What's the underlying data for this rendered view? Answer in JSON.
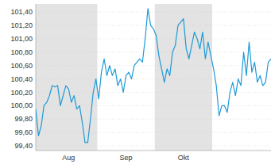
{
  "chart_data": {
    "type": "line",
    "categories": [
      null,
      null,
      null,
      null,
      null,
      null,
      null,
      null,
      null,
      null,
      null,
      null,
      "Aug",
      null,
      null,
      null,
      null,
      null,
      null,
      null,
      null,
      null,
      null,
      null,
      null,
      null,
      null,
      null,
      null,
      null,
      null,
      null,
      null,
      "Sep",
      null,
      null,
      null,
      null,
      null,
      null,
      null,
      null,
      null,
      null,
      null,
      null,
      null,
      null,
      null,
      null,
      null,
      null,
      null,
      null,
      "Okt",
      null,
      null,
      null,
      null,
      null,
      null,
      null,
      null,
      null,
      null,
      null,
      null,
      null,
      null,
      null,
      null,
      null,
      null,
      null,
      null,
      null,
      null,
      null,
      null,
      null,
      null,
      null,
      null,
      null,
      null,
      null,
      null
    ],
    "values": [
      99.95,
      99.55,
      99.7,
      100.0,
      100.05,
      100.15,
      100.3,
      100.28,
      100.3,
      100.0,
      100.15,
      100.3,
      100.25,
      100.05,
      100.15,
      99.95,
      100.0,
      99.75,
      99.45,
      99.45,
      99.8,
      100.2,
      100.4,
      100.1,
      100.5,
      100.7,
      100.45,
      100.6,
      100.45,
      100.55,
      100.3,
      100.4,
      100.2,
      100.45,
      100.5,
      100.4,
      100.6,
      100.65,
      100.7,
      100.65,
      101.0,
      101.45,
      101.2,
      101.15,
      101.05,
      100.75,
      100.55,
      100.35,
      100.55,
      100.45,
      100.8,
      100.9,
      101.2,
      101.25,
      101.3,
      100.85,
      100.7,
      100.9,
      101.1,
      101.0,
      100.85,
      101.1,
      100.7,
      100.95,
      100.75,
      100.55,
      100.3,
      99.85,
      100.0,
      100.0,
      99.9,
      100.2,
      100.35,
      100.15,
      100.4,
      100.3,
      100.8,
      100.45,
      100.95,
      100.5,
      100.65,
      100.35,
      100.45,
      100.3,
      100.35,
      100.65,
      100.7
    ],
    "color": "#1f9ad6",
    "ylim": [
      99.33,
      101.52
    ],
    "yticks": [
      {
        "value": 99.4,
        "label": "99,40"
      },
      {
        "value": 99.6,
        "label": "99,60"
      },
      {
        "value": 99.8,
        "label": "99,80"
      },
      {
        "value": 100.0,
        "label": "100,00"
      },
      {
        "value": 100.2,
        "label": "100,20"
      },
      {
        "value": 100.4,
        "label": "100,40"
      },
      {
        "value": 100.6,
        "label": "100,60"
      },
      {
        "value": 100.8,
        "label": "100,80"
      },
      {
        "value": 101.0,
        "label": "101,00"
      },
      {
        "value": 101.2,
        "label": "101,20"
      },
      {
        "value": 101.4,
        "label": "101,40"
      }
    ],
    "grid": true
  }
}
